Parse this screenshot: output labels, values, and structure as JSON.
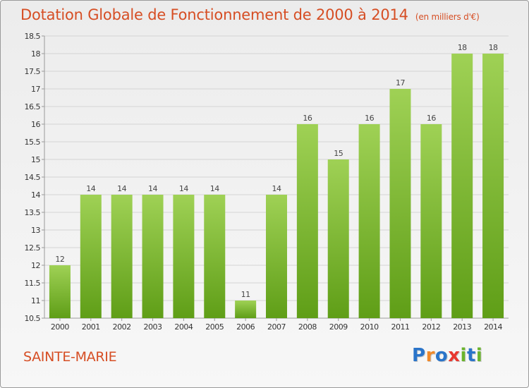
{
  "header": {
    "title": "Dotation Globale de Fonctionnement de 2000 à 2014",
    "unit": "(en milliers d'€)"
  },
  "footer": {
    "commune": "SAINTE-MARIE",
    "logo": {
      "text": "Proxiti",
      "letters": [
        {
          "char": "P",
          "color": "#2a74c9"
        },
        {
          "char": "r",
          "color": "#f0892a"
        },
        {
          "char": "o",
          "color": "#2a74c9"
        },
        {
          "char": "x",
          "color": "#e8382f"
        },
        {
          "char": "i",
          "color": "#6ab42d"
        },
        {
          "char": "t",
          "color": "#2a74c9"
        },
        {
          "char": "i",
          "color": "#6ab42d"
        }
      ]
    }
  },
  "colors": {
    "title": "#d64e24",
    "bar_top": "#9fd155",
    "bar_bottom": "#5f9e17",
    "grid": "#d4d4d4",
    "axis": "#9a9a9a"
  },
  "chart_data": {
    "type": "bar",
    "title": "Dotation Globale de Fonctionnement de 2000 à 2014",
    "xlabel": "",
    "ylabel": "",
    "categories": [
      "2000",
      "2001",
      "2002",
      "2003",
      "2004",
      "2005",
      "2006",
      "2007",
      "2008",
      "2009",
      "2010",
      "2011",
      "2012",
      "2013",
      "2014"
    ],
    "values": [
      12,
      14,
      14,
      14,
      14,
      14,
      11,
      14,
      16,
      15,
      16,
      17,
      16,
      18,
      18
    ],
    "data_labels": [
      "12",
      "14",
      "14",
      "14",
      "14",
      "14",
      "11",
      "14",
      "16",
      "15",
      "16",
      "17",
      "16",
      "18",
      "18"
    ],
    "ylim": [
      10.5,
      18.5
    ],
    "yticks": [
      10.5,
      11,
      11.5,
      12,
      12.5,
      13,
      13.5,
      14,
      14.5,
      15,
      15.5,
      16,
      16.5,
      17,
      17.5,
      18,
      18.5
    ],
    "ytick_labels": [
      "10.5",
      "11",
      "11.5",
      "12",
      "12.5",
      "13",
      "13.5",
      "14",
      "14.5",
      "15",
      "15.5",
      "16",
      "16.5",
      "17",
      "17.5",
      "18",
      "18.5"
    ],
    "grid": true,
    "legend": "none"
  }
}
